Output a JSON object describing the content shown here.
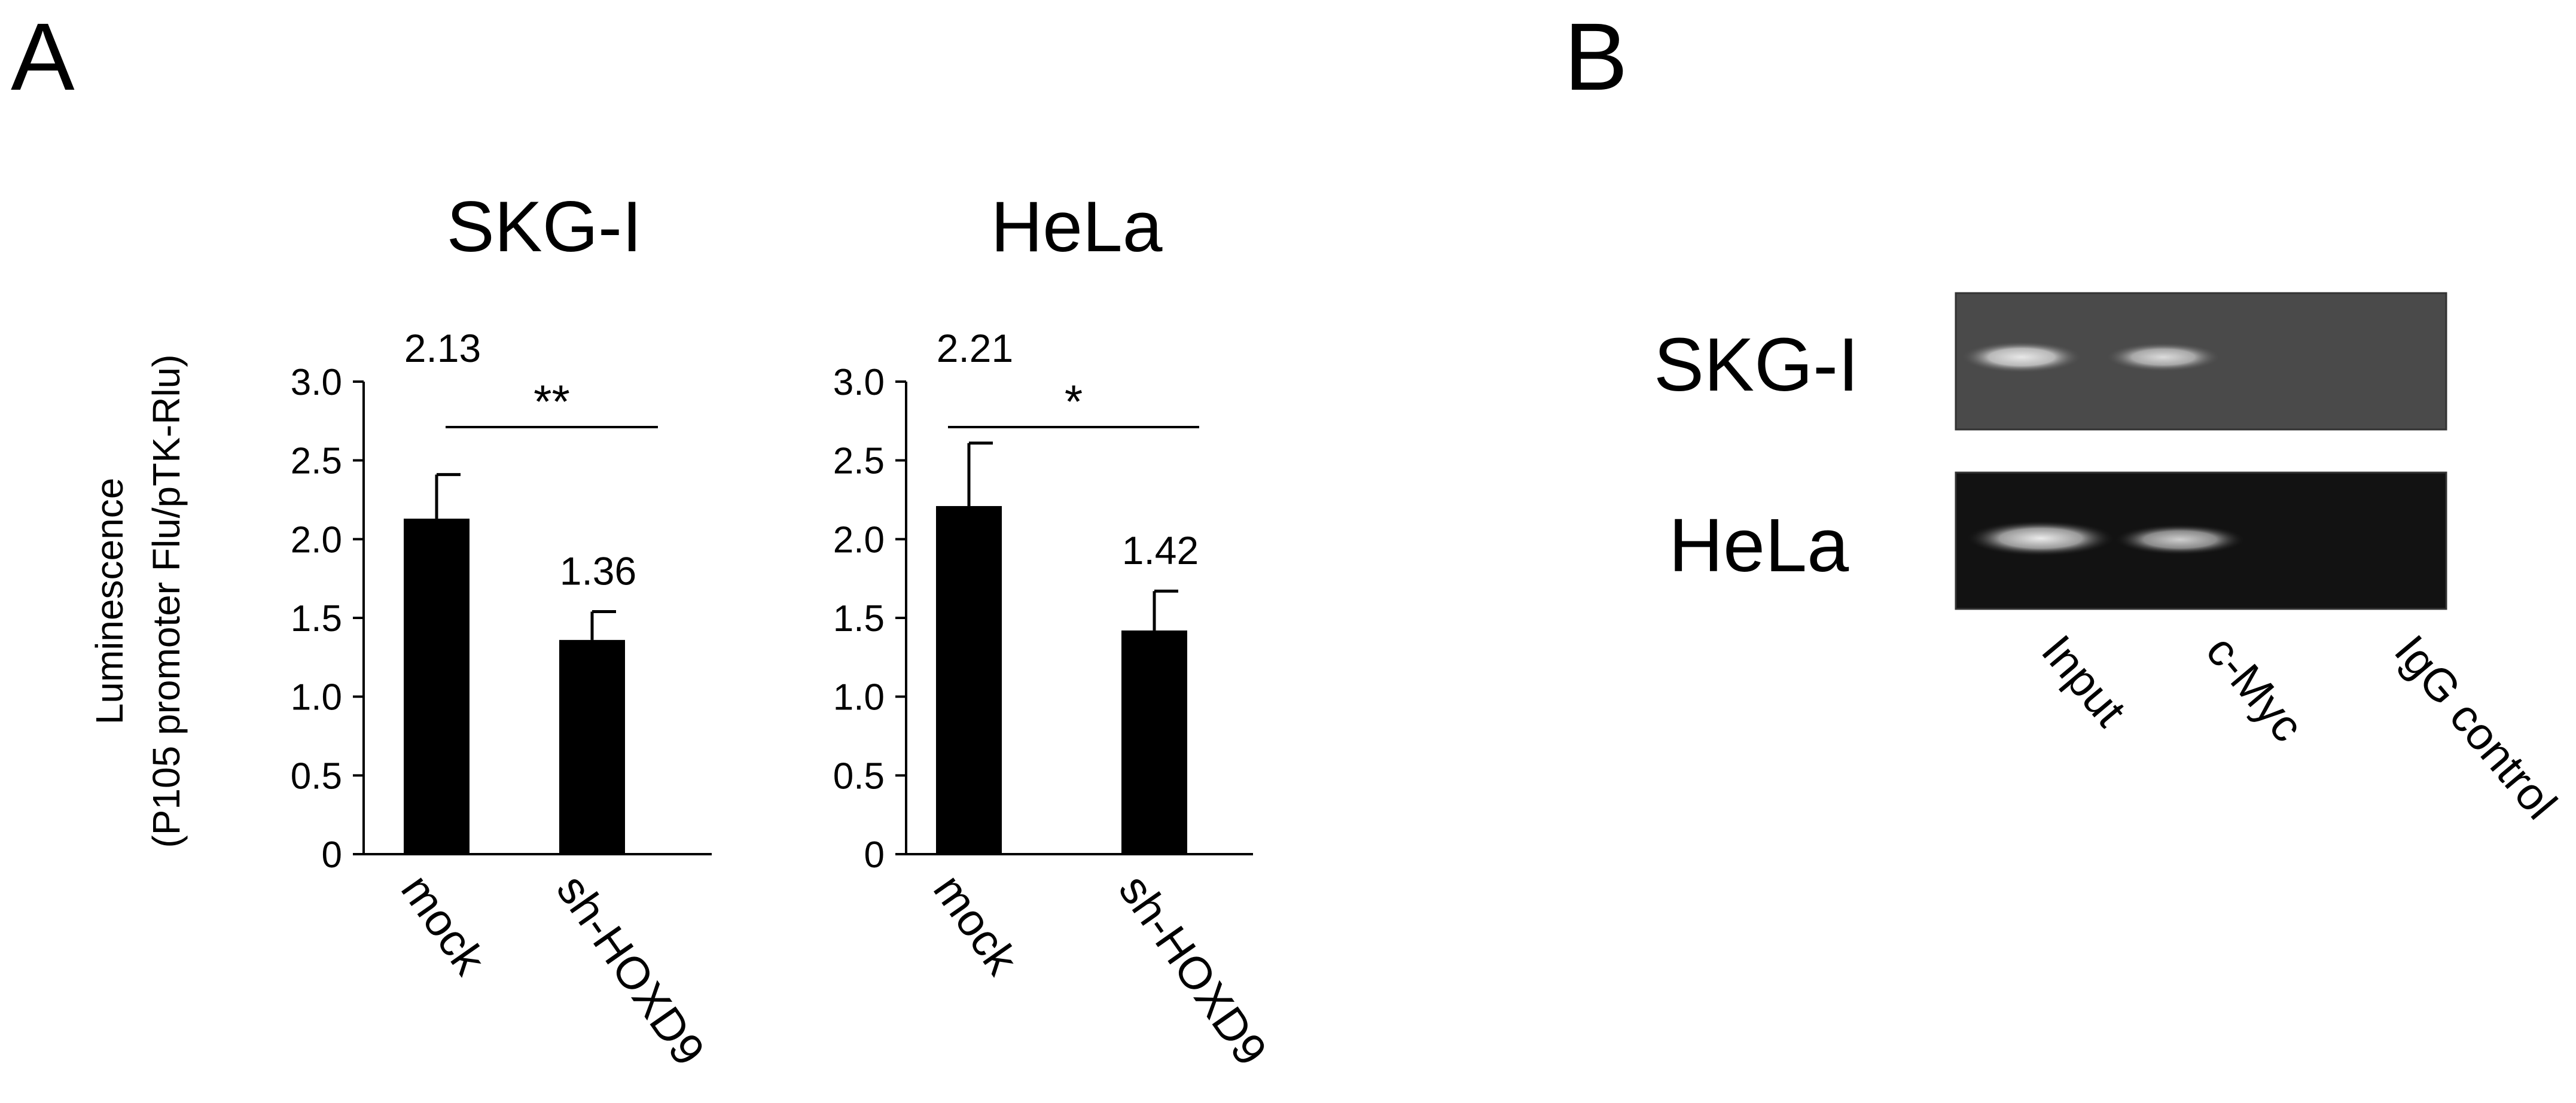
{
  "panel_a": {
    "label": "A"
  },
  "panel_b": {
    "label": "B"
  },
  "chart_data": [
    {
      "type": "bar",
      "title": "SKG-I",
      "ylabel": "Luminescence",
      "ylabel2": "(P105 promoter Flu/pTK-Rlu)",
      "categories": [
        "mock",
        "sh-HOXD9"
      ],
      "values": [
        2.13,
        1.36
      ],
      "errors": [
        0.28,
        0.18
      ],
      "value_labels": [
        "2.13",
        "1.36"
      ],
      "ylim": [
        0,
        3.0
      ],
      "yticks": [
        0,
        0.5,
        1.0,
        1.5,
        2.0,
        2.5,
        3.0
      ],
      "ytick_labels": [
        "0",
        "0.5",
        "1.0",
        "1.5",
        "2.0",
        "2.5",
        "3.0"
      ],
      "significance": "**",
      "bar_color": "#000000"
    },
    {
      "type": "bar",
      "title": "HeLa",
      "categories": [
        "mock",
        "sh-HOXD9"
      ],
      "values": [
        2.21,
        1.42
      ],
      "errors": [
        0.4,
        0.25
      ],
      "value_labels": [
        "2.21",
        "1.42"
      ],
      "ylim": [
        0,
        3.0
      ],
      "yticks": [
        0,
        0.5,
        1.0,
        1.5,
        2.0,
        2.5,
        3.0
      ],
      "ytick_labels": [
        "0",
        "0.5",
        "1.0",
        "1.5",
        "2.0",
        "2.5",
        "3.0"
      ],
      "significance": "*",
      "bar_color": "#000000"
    }
  ],
  "gel": {
    "rows": [
      "SKG-I",
      "HeLa"
    ],
    "lanes": [
      "Input",
      "c-Myc",
      "IgG control"
    ]
  }
}
